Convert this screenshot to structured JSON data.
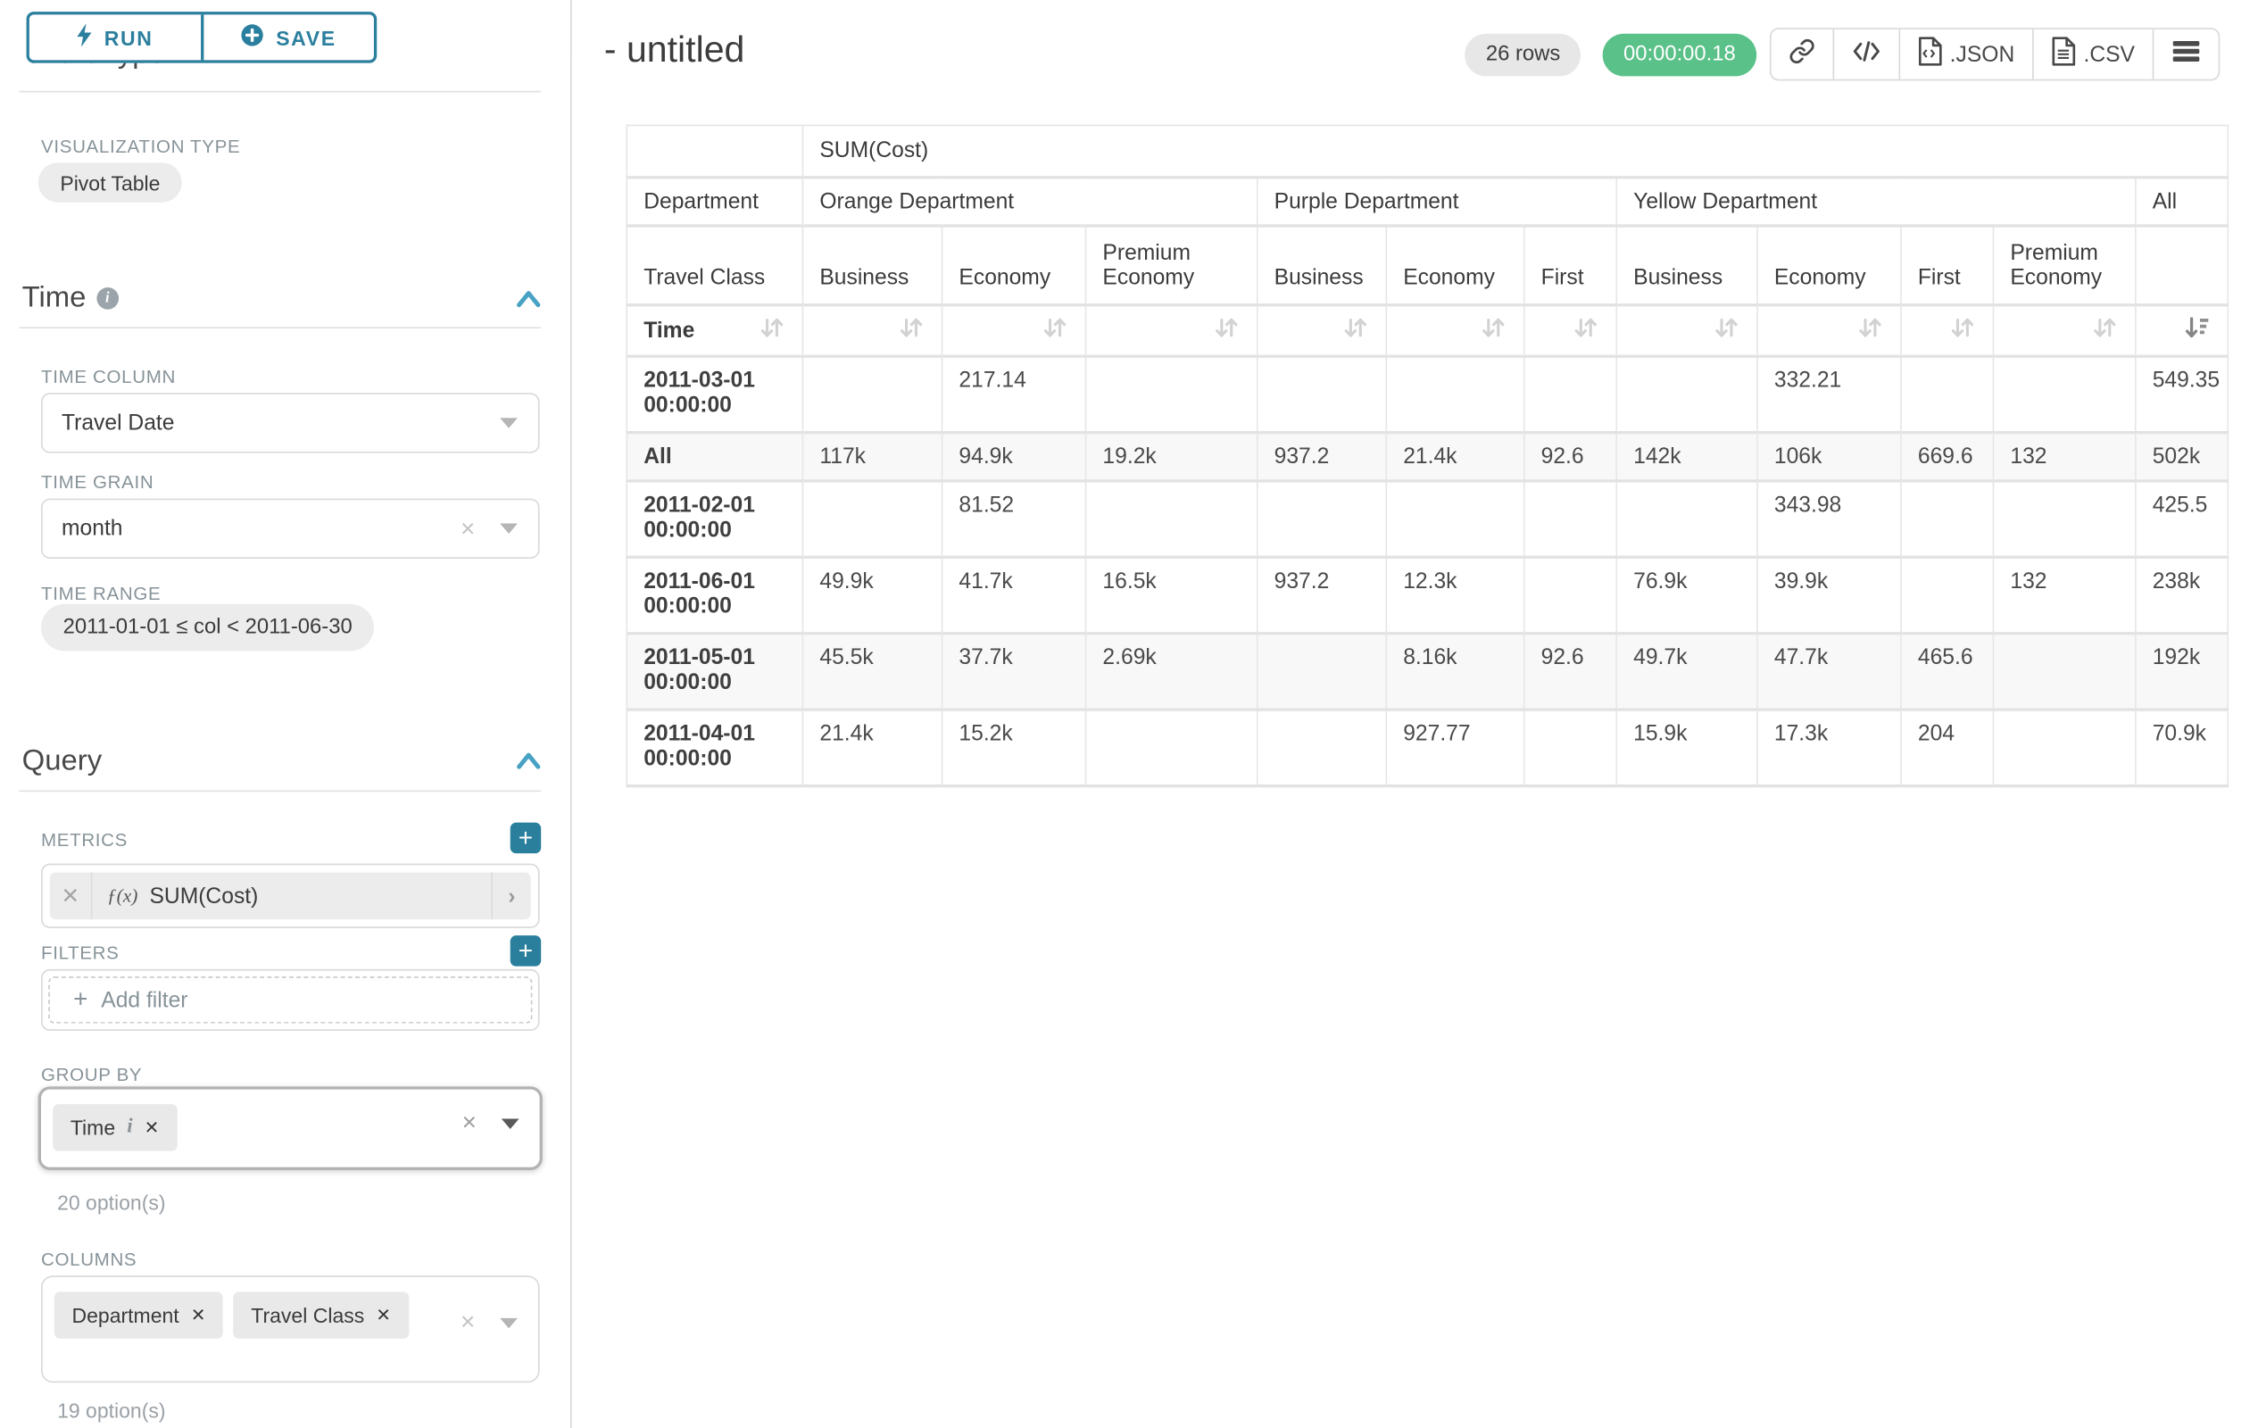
{
  "colors": {
    "teal_button": "#2b7f9e",
    "teal_add": "#2a7f9c",
    "chevron_blue": "#48a2c4",
    "timer_green": "#5ac189",
    "label_gray": "#879399"
  },
  "sidebar": {
    "run_label": "RUN",
    "save_label": "SAVE",
    "chart_type_heading": "Chart Type",
    "viz": {
      "label": "VISUALIZATION TYPE",
      "value": "Pivot Table"
    },
    "time": {
      "title": "Time",
      "column_label": "TIME COLUMN",
      "column_value": "Travel Date",
      "grain_label": "TIME GRAIN",
      "grain_value": "month",
      "range_label": "TIME RANGE",
      "range_value": "2011-01-01 ≤ col < 2011-06-30"
    },
    "query": {
      "title": "Query",
      "metrics_label": "METRICS",
      "metric": {
        "fx": "ƒ(x)",
        "name": "SUM(Cost)"
      },
      "filters_label": "FILTERS",
      "add_filter_label": "Add filter",
      "group_by_label": "GROUP BY",
      "group_by_pills": [
        {
          "label": "Time",
          "info": true
        }
      ],
      "group_by_hint": "20 option(s)",
      "columns_label": "COLUMNS",
      "columns_pills": [
        {
          "label": "Department"
        },
        {
          "label": "Travel Class"
        }
      ],
      "columns_hint": "19 option(s)"
    }
  },
  "header": {
    "title": "- untitled",
    "row_count": "26 rows",
    "elapsed": "00:00:00.18",
    "export_json_label": ".JSON",
    "export_csv_label": ".CSV"
  },
  "pivot": {
    "metric_header": "SUM(Cost)",
    "col_dimension": "Department",
    "sub_dimension": "Travel Class",
    "row_dimension": "Time",
    "groups": [
      {
        "name": "Orange Department",
        "cols": [
          "Business",
          "Economy",
          "Premium Economy"
        ]
      },
      {
        "name": "Purple Department",
        "cols": [
          "Business",
          "Economy",
          "First"
        ]
      },
      {
        "name": "Yellow Department",
        "cols": [
          "Business",
          "Economy",
          "First",
          "Premium Economy"
        ]
      },
      {
        "name": "All",
        "cols": [
          ""
        ]
      }
    ],
    "rows": [
      {
        "label": "2011-03-01 00:00:00",
        "values": [
          "",
          "217.14",
          "",
          "",
          "",
          "",
          "",
          "332.21",
          "",
          "",
          "549.35"
        ]
      },
      {
        "label": "All",
        "values": [
          "117k",
          "94.9k",
          "19.2k",
          "937.2",
          "21.4k",
          "92.6",
          "142k",
          "106k",
          "669.6",
          "132",
          "502k"
        ]
      },
      {
        "label": "2011-02-01 00:00:00",
        "values": [
          "",
          "81.52",
          "",
          "",
          "",
          "",
          "",
          "343.98",
          "",
          "",
          "425.5"
        ]
      },
      {
        "label": "2011-06-01 00:00:00",
        "values": [
          "49.9k",
          "41.7k",
          "16.5k",
          "937.2",
          "12.3k",
          "",
          "76.9k",
          "39.9k",
          "",
          "132",
          "238k"
        ]
      },
      {
        "label": "2011-05-01 00:00:00",
        "values": [
          "45.5k",
          "37.7k",
          "2.69k",
          "",
          "8.16k",
          "92.6",
          "49.7k",
          "47.7k",
          "465.6",
          "",
          "192k"
        ]
      },
      {
        "label": "2011-04-01 00:00:00",
        "values": [
          "21.4k",
          "15.2k",
          "",
          "",
          "927.77",
          "",
          "15.9k",
          "17.3k",
          "204",
          "",
          "70.9k"
        ]
      }
    ]
  }
}
